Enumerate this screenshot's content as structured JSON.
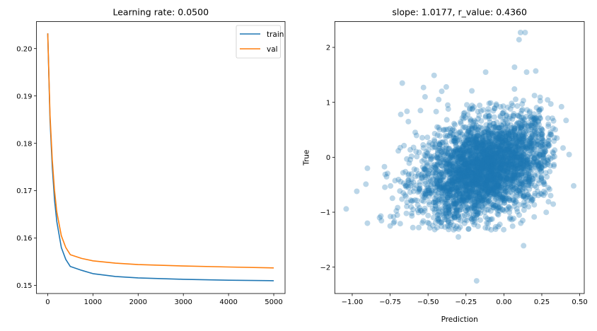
{
  "chart_data": [
    {
      "type": "line",
      "title": "Learning rate: 0.0500",
      "xlabel": "",
      "ylabel": "",
      "xlim": [
        -250,
        5250
      ],
      "ylim": [
        0.1483,
        0.2057
      ],
      "xticks": [
        0,
        1000,
        2000,
        3000,
        4000,
        5000
      ],
      "xtick_labels": [
        "0",
        "1000",
        "2000",
        "3000",
        "4000",
        "5000"
      ],
      "yticks": [
        0.15,
        0.16,
        0.17,
        0.18,
        0.19,
        0.2
      ],
      "ytick_labels": [
        "0.15",
        "0.16",
        "0.17",
        "0.18",
        "0.19",
        "0.20"
      ],
      "grid": false,
      "legend": "top-right",
      "x": [
        0,
        50,
        100,
        150,
        200,
        300,
        400,
        500,
        750,
        1000,
        1500,
        2000,
        3000,
        4000,
        5000
      ],
      "series": [
        {
          "name": "train",
          "color": "#1f77b4",
          "values": [
            0.2032,
            0.185,
            0.175,
            0.168,
            0.1635,
            0.158,
            0.1555,
            0.154,
            0.1532,
            0.1525,
            0.1519,
            0.1516,
            0.1513,
            0.1511,
            0.151
          ]
        },
        {
          "name": "val",
          "color": "#ff7f0e",
          "values": [
            0.2032,
            0.186,
            0.1765,
            0.17,
            0.1655,
            0.1605,
            0.158,
            0.1565,
            0.1557,
            0.1552,
            0.1547,
            0.1544,
            0.1541,
            0.1539,
            0.1537
          ]
        }
      ]
    },
    {
      "type": "scatter",
      "title": "slope: 1.0177, r_value: 0.4360",
      "xlabel": "Prediction",
      "ylabel": "True",
      "xlim": [
        -1.115,
        0.53
      ],
      "ylim": [
        -2.48,
        2.47
      ],
      "xticks": [
        -1.0,
        -0.75,
        -0.5,
        -0.25,
        0.0,
        0.25,
        0.5
      ],
      "xtick_labels": [
        "−1.00",
        "−0.75",
        "−0.50",
        "−0.25",
        "0.00",
        "0.25",
        "0.50"
      ],
      "yticks": [
        -2,
        -1,
        0,
        1,
        2
      ],
      "ytick_labels": [
        "−2",
        "−1",
        "0",
        "1",
        "2"
      ],
      "grid": false,
      "color": "#1f77b4",
      "alpha": 0.3,
      "points": [
        [
          -1.04,
          -0.94
        ],
        [
          -0.97,
          -0.62
        ],
        [
          -0.9,
          -0.2
        ],
        [
          -0.9,
          -1.2
        ],
        [
          -0.91,
          -0.49
        ],
        [
          -0.82,
          -1.1
        ],
        [
          -0.67,
          1.35
        ],
        [
          -0.46,
          1.49
        ],
        [
          -0.53,
          1.27
        ],
        [
          -0.52,
          1.1
        ],
        [
          -0.68,
          0.78
        ],
        [
          -0.63,
          0.65
        ],
        [
          -0.55,
          0.85
        ],
        [
          -0.43,
          1.05
        ],
        [
          -0.41,
          1.2
        ],
        [
          -0.38,
          1.28
        ],
        [
          -0.37,
          0.95
        ],
        [
          -0.12,
          1.55
        ],
        [
          0.11,
          2.27
        ],
        [
          0.14,
          2.27
        ],
        [
          0.1,
          2.14
        ],
        [
          0.07,
          1.64
        ],
        [
          0.21,
          1.57
        ],
        [
          0.15,
          1.55
        ],
        [
          0.46,
          -0.52
        ],
        [
          0.43,
          0.05
        ],
        [
          0.41,
          0.67
        ],
        [
          0.39,
          0.17
        ],
        [
          0.38,
          0.92
        ],
        [
          0.35,
          0.35
        ],
        [
          -0.18,
          -2.25
        ],
        [
          0.13,
          -1.61
        ],
        [
          -0.3,
          -1.45
        ],
        [
          -0.75,
          -1.25
        ],
        [
          -0.6,
          -1.28
        ],
        [
          -0.44,
          -1.28
        ]
      ]
    }
  ]
}
